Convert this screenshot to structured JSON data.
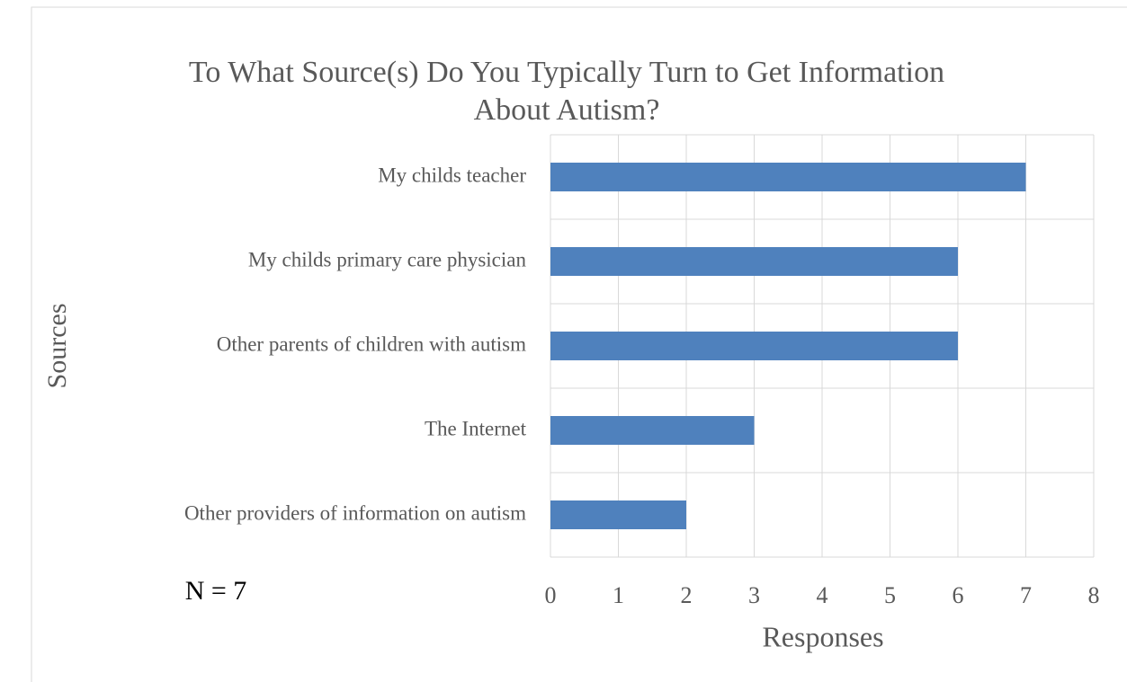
{
  "chart_data": {
    "type": "bar",
    "orientation": "horizontal",
    "title": [
      "To What Source(s) Do You Typically Turn to Get Information",
      "About Autism?"
    ],
    "xlabel": "Responses",
    "ylabel": "Sources",
    "annotation": "N = 7",
    "categories": [
      "My childs teacher",
      "My childs primary care physician",
      "Other parents of children with autism",
      "The Internet",
      "Other providers of information on autism"
    ],
    "values": [
      7,
      6,
      6,
      3,
      2
    ],
    "color": "#4f81bd",
    "xlim": [
      0,
      8
    ],
    "xticks": [
      0,
      1,
      2,
      3,
      4,
      5,
      6,
      7,
      8
    ],
    "grid": true
  }
}
